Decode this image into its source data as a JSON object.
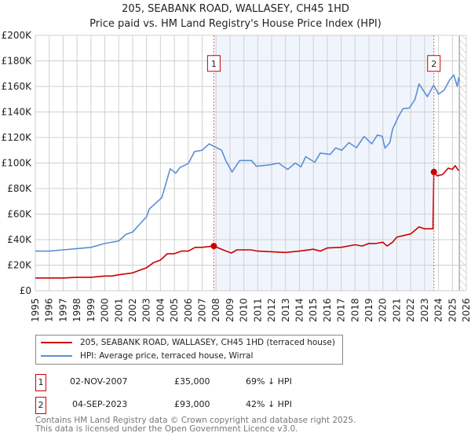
{
  "chart_data": {
    "type": "line",
    "title": "205, SEABANK ROAD, WALLASEY, CH45 1HD",
    "subtitle": "Price paid vs. HM Land Registry's House Price Index (HPI)",
    "xlabel": "",
    "ylabel": "",
    "xlim": [
      1995,
      2026
    ],
    "ylim": [
      0,
      200000
    ],
    "grid": true,
    "x_ticks": [
      "1995",
      "1996",
      "1997",
      "1998",
      "1999",
      "2000",
      "2001",
      "2002",
      "2003",
      "2004",
      "2005",
      "2006",
      "2007",
      "2008",
      "2009",
      "2010",
      "2011",
      "2012",
      "2013",
      "2014",
      "2015",
      "2016",
      "2017",
      "2018",
      "2019",
      "2020",
      "2021",
      "2022",
      "2023",
      "2024",
      "2025",
      "2026"
    ],
    "y_ticks": [
      {
        "value": 0,
        "label": "£0"
      },
      {
        "value": 20000,
        "label": "£20K"
      },
      {
        "value": 40000,
        "label": "£40K"
      },
      {
        "value": 60000,
        "label": "£60K"
      },
      {
        "value": 80000,
        "label": "£80K"
      },
      {
        "value": 100000,
        "label": "£100K"
      },
      {
        "value": 120000,
        "label": "£120K"
      },
      {
        "value": 140000,
        "label": "£140K"
      },
      {
        "value": 160000,
        "label": "£160K"
      },
      {
        "value": 180000,
        "label": "£180K"
      },
      {
        "value": 200000,
        "label": "£200K"
      }
    ],
    "shaded_range": [
      2007.84,
      2023.67
    ],
    "forecast_hatch_from": 2025.5,
    "series": [
      {
        "name": "205, SEABANK ROAD, WALLASEY, CH45 1HD (terraced house)",
        "color": "#cc0000",
        "x": [
          1995,
          1996,
          1997,
          1998,
          1999,
          2000,
          2000.5,
          2001,
          2002,
          2002.5,
          2003,
          2003.5,
          2004,
          2004.5,
          2005,
          2005.5,
          2006,
          2006.5,
          2007,
          2007.84,
          2008.5,
          2009.1,
          2009.5,
          2010.5,
          2011,
          2012,
          2013,
          2014,
          2015,
          2015.5,
          2016,
          2017,
          2018,
          2018.5,
          2019,
          2019.5,
          2020,
          2020.3,
          2020.7,
          2021,
          2022,
          2022.6,
          2023,
          2023.6,
          2023.67,
          2023.9,
          2024.3,
          2024.7,
          2025,
          2025.2,
          2025.45
        ],
        "y": [
          10000,
          10000,
          10000,
          10500,
          10500,
          11500,
          11500,
          12500,
          14000,
          16000,
          18000,
          22000,
          24000,
          29000,
          29000,
          31000,
          31000,
          34000,
          34000,
          35000,
          32000,
          29500,
          32000,
          32000,
          31000,
          30500,
          30000,
          31000,
          32500,
          31000,
          33500,
          34000,
          36000,
          35000,
          37000,
          37000,
          38000,
          35000,
          38000,
          42000,
          44500,
          50000,
          48500,
          48500,
          93000,
          90000,
          91000,
          96000,
          95000,
          98000,
          94000
        ]
      },
      {
        "name": "HPI: Average price, terraced house, Wirral",
        "color": "#5b8fd6",
        "x": [
          1995,
          1996,
          1997,
          1998,
          1999,
          2000,
          2001,
          2001.5,
          2002,
          2002.5,
          2003,
          2003.2,
          2004.1,
          2004.7,
          2005.1,
          2005.4,
          2006,
          2006.45,
          2007,
          2007.5,
          2008.4,
          2008.7,
          2009.15,
          2009.7,
          2010.55,
          2010.9,
          2011.85,
          2012.5,
          2013.15,
          2013.7,
          2014.1,
          2014.45,
          2015.1,
          2015.5,
          2016.2,
          2016.6,
          2017.05,
          2017.55,
          2018.1,
          2018.65,
          2019.2,
          2019.6,
          2019.95,
          2020.15,
          2020.5,
          2020.7,
          2021.15,
          2021.45,
          2021.9,
          2022.3,
          2022.6,
          2023.2,
          2023.65,
          2024.0,
          2024.4,
          2024.8,
          2025.1,
          2025.35,
          2025.45
        ],
        "y": [
          31000,
          31000,
          32000,
          33000,
          34000,
          37000,
          39000,
          44000,
          46000,
          52000,
          58000,
          64000,
          73000,
          95500,
          92000,
          96500,
          99600,
          109000,
          110000,
          115000,
          110000,
          102000,
          93000,
          102000,
          102000,
          97500,
          98600,
          100000,
          95000,
          100000,
          97000,
          105000,
          100600,
          107800,
          106700,
          111800,
          110000,
          116000,
          112000,
          120800,
          115000,
          122000,
          121000,
          111700,
          116000,
          126500,
          137000,
          142600,
          143000,
          149600,
          162000,
          152000,
          161000,
          154000,
          157000,
          165000,
          169000,
          160000,
          167000
        ]
      }
    ],
    "sales": [
      {
        "label": "1",
        "date": "02-NOV-2007",
        "price": "£35,000",
        "hpi_diff": "69% ↓ HPI",
        "x": 2007.84,
        "value": 35000
      },
      {
        "label": "2",
        "date": "04-SEP-2023",
        "price": "£93,000",
        "hpi_diff": "42% ↓ HPI",
        "x": 2023.67,
        "value": 93000
      }
    ]
  },
  "legend": {
    "property": "205, SEABANK ROAD, WALLASEY, CH45 1HD (terraced house)",
    "hpi": "HPI: Average price, terraced house, Wirral"
  },
  "footer": {
    "line1": "Contains HM Land Registry data © Crown copyright and database right 2025.",
    "line2": "This data is licensed under the Open Government Licence v3.0."
  }
}
